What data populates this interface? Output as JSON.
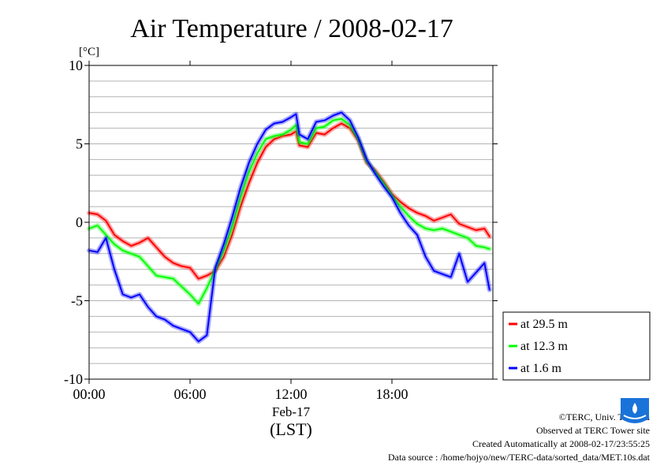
{
  "chart_data": {
    "type": "line",
    "title": "Air Temperature / 2008-02-17",
    "ylabel": "[°C]",
    "xlabel_date": "Feb-17",
    "xlabel_tz": "(LST)",
    "ylim": [
      -10,
      10
    ],
    "xlim_hours": [
      0,
      24
    ],
    "yticks": [
      10,
      5,
      0,
      -5,
      -10
    ],
    "yticklabels": [
      "10",
      "5",
      "0",
      "-5",
      "-10"
    ],
    "xticks_hours": [
      0,
      6,
      12,
      18
    ],
    "xticklabels": [
      "00:00",
      "06:00",
      "12:00",
      "18:00"
    ],
    "grid": true,
    "legend_position": "right",
    "series": [
      {
        "name": "at 29.5 m",
        "color": "#ff0000",
        "x": [
          0.0,
          0.5,
          1.0,
          1.5,
          2.0,
          2.5,
          3.0,
          3.5,
          4.0,
          4.5,
          5.0,
          5.5,
          6.0,
          6.5,
          7.0,
          7.5,
          8.0,
          8.5,
          9.0,
          9.5,
          10.0,
          10.5,
          11.0,
          11.5,
          12.0,
          12.3,
          12.5,
          13.0,
          13.5,
          14.0,
          14.5,
          15.0,
          15.5,
          16.0,
          16.5,
          17.0,
          17.5,
          18.0,
          18.5,
          19.0,
          19.5,
          20.0,
          20.5,
          21.0,
          21.5,
          22.0,
          22.5,
          23.0,
          23.5,
          23.8
        ],
        "y": [
          0.6,
          0.5,
          0.1,
          -0.8,
          -1.2,
          -1.5,
          -1.3,
          -1.0,
          -1.6,
          -2.2,
          -2.6,
          -2.8,
          -2.9,
          -3.6,
          -3.4,
          -3.1,
          -2.2,
          -0.8,
          1.0,
          2.5,
          3.8,
          4.8,
          5.3,
          5.5,
          5.6,
          5.8,
          4.9,
          4.8,
          5.7,
          5.6,
          6.0,
          6.3,
          6.0,
          5.2,
          3.8,
          3.3,
          2.6,
          1.8,
          1.3,
          0.9,
          0.6,
          0.4,
          0.1,
          0.3,
          0.5,
          -0.1,
          -0.3,
          -0.5,
          -0.4,
          -0.9
        ]
      },
      {
        "name": "at 12.3 m",
        "color": "#00ff00",
        "x": [
          0.0,
          0.5,
          1.0,
          1.5,
          2.0,
          2.5,
          3.0,
          3.5,
          4.0,
          4.5,
          5.0,
          5.5,
          6.0,
          6.5,
          7.0,
          7.5,
          8.0,
          8.5,
          9.0,
          9.5,
          10.0,
          10.5,
          11.0,
          11.5,
          12.0,
          12.3,
          12.5,
          13.0,
          13.5,
          14.0,
          14.5,
          15.0,
          15.5,
          16.0,
          16.5,
          17.0,
          17.5,
          18.0,
          18.5,
          19.0,
          19.5,
          20.0,
          20.5,
          21.0,
          21.5,
          22.0,
          22.5,
          23.0,
          23.5,
          23.8
        ],
        "y": [
          -0.4,
          -0.2,
          -0.8,
          -1.4,
          -1.8,
          -2.0,
          -2.2,
          -2.8,
          -3.4,
          -3.5,
          -3.6,
          -4.1,
          -4.6,
          -5.2,
          -4.2,
          -3.0,
          -1.8,
          -0.3,
          1.6,
          3.2,
          4.4,
          5.3,
          5.5,
          5.6,
          5.9,
          6.2,
          5.1,
          5.0,
          6.0,
          6.1,
          6.5,
          6.6,
          6.2,
          5.3,
          3.9,
          3.2,
          2.5,
          1.7,
          1.0,
          0.4,
          -0.1,
          -0.4,
          -0.5,
          -0.4,
          -0.6,
          -0.8,
          -1.0,
          -1.5,
          -1.6,
          -1.7
        ]
      },
      {
        "name": "at 1.6 m",
        "color": "#0000ff",
        "x": [
          0.0,
          0.5,
          1.0,
          1.5,
          2.0,
          2.5,
          3.0,
          3.5,
          4.0,
          4.5,
          5.0,
          5.5,
          6.0,
          6.5,
          7.0,
          7.5,
          8.0,
          8.5,
          9.0,
          9.5,
          10.0,
          10.5,
          11.0,
          11.5,
          12.0,
          12.3,
          12.5,
          13.0,
          13.5,
          14.0,
          14.5,
          15.0,
          15.5,
          16.0,
          16.5,
          17.0,
          17.5,
          18.0,
          18.5,
          19.0,
          19.5,
          20.0,
          20.5,
          21.0,
          21.5,
          22.0,
          22.5,
          23.0,
          23.5,
          23.8
        ],
        "y": [
          -1.8,
          -1.9,
          -1.0,
          -3.0,
          -4.6,
          -4.8,
          -4.6,
          -5.4,
          -6.0,
          -6.2,
          -6.6,
          -6.8,
          -7.0,
          -7.6,
          -7.2,
          -2.9,
          -1.4,
          0.3,
          2.2,
          3.8,
          5.0,
          5.9,
          6.3,
          6.4,
          6.7,
          6.9,
          5.6,
          5.3,
          6.4,
          6.5,
          6.8,
          7.0,
          6.5,
          5.4,
          4.0,
          3.1,
          2.3,
          1.6,
          0.6,
          -0.2,
          -0.8,
          -2.2,
          -3.1,
          -3.3,
          -3.5,
          -2.0,
          -3.8,
          -3.2,
          -2.6,
          -4.3
        ]
      }
    ]
  },
  "footer": {
    "copyright": "©TERC, Univ. Tsukuba",
    "observed": "Observed at TERC Tower site",
    "created": "Created Automatically at 2008-02-17/23:55:25",
    "source": "Data source : /home/hojyo/new/TERC-data/sorted_data/MET.10s.dat"
  },
  "logo": {
    "text": "TERC",
    "color": "#1a73d9"
  }
}
